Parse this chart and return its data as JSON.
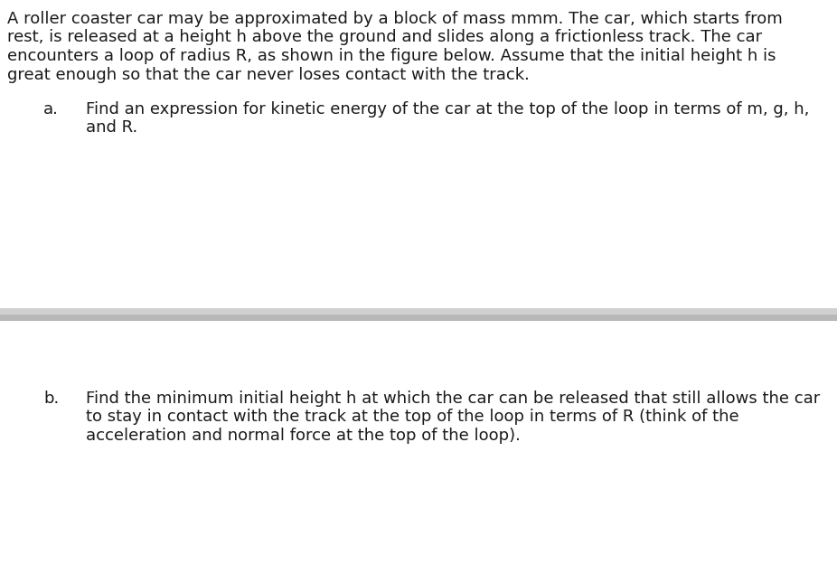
{
  "background_color": "#ffffff",
  "divider_color_top": "#d0d0d0",
  "divider_color_mid": "#b8b8b8",
  "text_color": "#1a1a1a",
  "intro_text_lines": [
    "A roller coaster car may be approximated by a block of mass mmm. The car, which starts from",
    "rest, is released at a height h above the ground and slides along a frictionless track. The car",
    "encounters a loop of radius R, as shown in the figure below. Assume that the initial height h is",
    "great enough so that the car never loses contact with the track."
  ],
  "part_a_label": "a.",
  "part_a_text_lines": [
    "Find an expression for kinetic energy of the car at the top of the loop in terms of m, g, h,",
    "and R."
  ],
  "part_b_label": "b.",
  "part_b_text_lines": [
    "Find the minimum initial height h at which the car can be released that still allows the car",
    "to stay in contact with the track at the top of the loop in terms of R (think of the",
    "acceleration and normal force at the top of the loop)."
  ],
  "font_size": 13.0,
  "fig_width": 9.26,
  "fig_height": 6.35,
  "dpi": 100
}
